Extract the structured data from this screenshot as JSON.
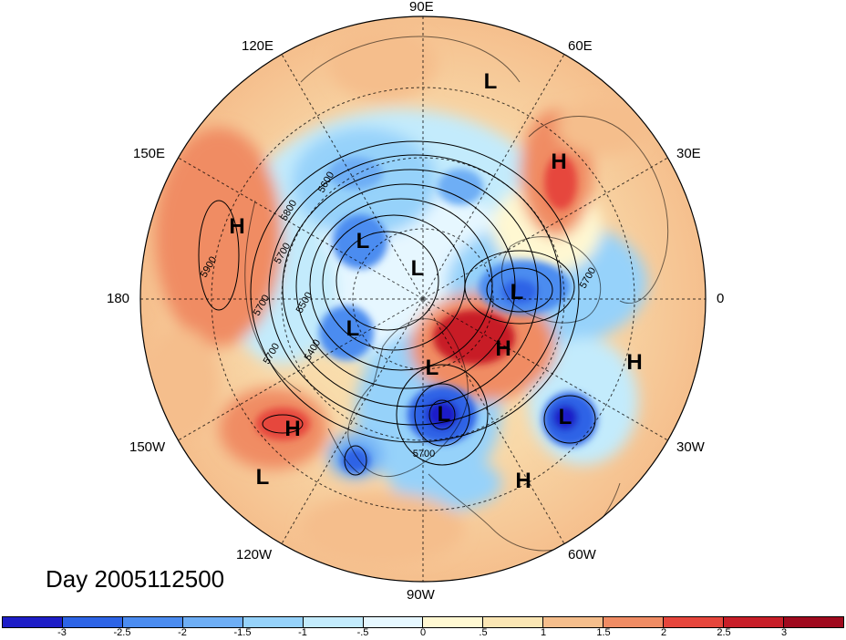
{
  "day_label": "Day 2005112500",
  "longitude_labels": {
    "lon_90e": "90E",
    "lon_60e": "60E",
    "lon_30e": "30E",
    "lon_0": "0",
    "lon_30w": "30W",
    "lon_60w": "60W",
    "lon_90w": "90W",
    "lon_120w": "120W",
    "lon_150w": "150W",
    "lon_180": "180",
    "lon_150e": "150E",
    "lon_120e": "120E"
  },
  "pressure_systems": [
    {
      "label": "L",
      "kind": "low"
    },
    {
      "label": "H",
      "kind": "high"
    },
    {
      "label": "H",
      "kind": "high"
    },
    {
      "label": "L",
      "kind": "low"
    },
    {
      "label": "L",
      "kind": "low"
    },
    {
      "label": "L",
      "kind": "low"
    },
    {
      "label": "L",
      "kind": "low"
    },
    {
      "label": "H",
      "kind": "high"
    },
    {
      "label": "L",
      "kind": "low"
    },
    {
      "label": "H",
      "kind": "high"
    },
    {
      "label": "L",
      "kind": "low"
    },
    {
      "label": "L",
      "kind": "low"
    },
    {
      "label": "H",
      "kind": "high"
    },
    {
      "label": "L",
      "kind": "low"
    },
    {
      "label": "H",
      "kind": "high"
    }
  ],
  "contour_labels": [
    "5900",
    "5800",
    "5700",
    "5700",
    "5600",
    "5500",
    "5400",
    "5700",
    "5700",
    "5700"
  ],
  "colorbar": {
    "tick_labels": [
      "-3",
      "-2.5",
      "-2",
      "-1.5",
      "-1",
      "-.5",
      "0",
      ".5",
      "1",
      "1.5",
      "2",
      "2.5",
      "3"
    ],
    "colors": [
      "#1e1ec8",
      "#2d64e6",
      "#4b8cf0",
      "#6eaef5",
      "#96d2fa",
      "#c3ebfc",
      "#e6f7ff",
      "#fff8d2",
      "#fae6b4",
      "#f5be8c",
      "#f08c64",
      "#e6463c",
      "#c81e28",
      "#a00a1e"
    ]
  }
}
